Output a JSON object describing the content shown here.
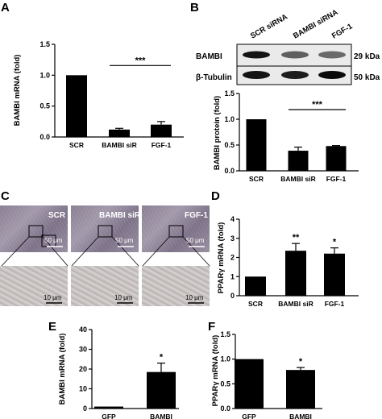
{
  "panel_labels": [
    "A",
    "B",
    "C",
    "D",
    "E",
    "F"
  ],
  "blot": {
    "lanes": [
      "SCR siRNA",
      "BAMBI siRNA",
      "FGF-1"
    ],
    "rows": [
      {
        "name": "BAMBI",
        "size": "29 kDa",
        "intensities": [
          0.95,
          0.55,
          0.5
        ]
      },
      {
        "name": "β-Tubulin",
        "size": "50 kDa",
        "intensities": [
          0.95,
          0.9,
          1.0
        ]
      }
    ]
  },
  "micrographs": {
    "labels": [
      "SCR",
      "BAMBI siR",
      "FGF-1"
    ],
    "scale_top": "50 μm",
    "scale_bottom": "10 μm"
  },
  "chart_data": [
    {
      "panel": "A",
      "type": "bar",
      "categories": [
        "SCR",
        "BAMBI siR",
        "FGF-1"
      ],
      "values": [
        1.0,
        0.12,
        0.2
      ],
      "errors": [
        0,
        0.02,
        0.05
      ],
      "ylabel": "BAMBI mRNA (fold)",
      "ylim": [
        0,
        1.5
      ],
      "yticks": [
        0.0,
        0.5,
        1.0,
        1.5
      ],
      "yticklabels": [
        "0.0",
        "0.5",
        "1.0",
        "1.5"
      ],
      "bracket": {
        "from": 1,
        "to": 2,
        "label": "***"
      },
      "bar_color": "#000000"
    },
    {
      "panel": "B",
      "type": "bar",
      "categories": [
        "SCR",
        "BAMBI siR",
        "FGF-1"
      ],
      "values": [
        1.0,
        0.39,
        0.48
      ],
      "errors": [
        0,
        0.07,
        0.01
      ],
      "ylabel": "BAMBI protein (fold)",
      "ylim": [
        0,
        1.5
      ],
      "yticks": [
        0.0,
        0.5,
        1.0,
        1.5
      ],
      "yticklabels": [
        "0.0",
        "0.5",
        "1.0",
        "1.5"
      ],
      "bracket": {
        "from": 1,
        "to": 2,
        "label": "***"
      },
      "bar_color": "#000000"
    },
    {
      "panel": "D",
      "type": "bar",
      "categories": [
        "SCR",
        "BAMBI siR",
        "FGF-1"
      ],
      "values": [
        1.0,
        2.35,
        2.2
      ],
      "errors": [
        0,
        0.38,
        0.3
      ],
      "stars": [
        "",
        "**",
        "*"
      ],
      "ylabel": "PPARγ mRNA (fold)",
      "ylim": [
        0,
        4
      ],
      "yticks": [
        0,
        1,
        2,
        3,
        4
      ],
      "yticklabels": [
        "0",
        "1",
        "2",
        "3",
        "4"
      ],
      "bar_color": "#000000"
    },
    {
      "panel": "E",
      "type": "bar",
      "categories": [
        "GFP",
        "BAMBI"
      ],
      "values": [
        1.0,
        18.5
      ],
      "errors": [
        0,
        4.5
      ],
      "stars": [
        "",
        "*"
      ],
      "ylabel": "BAMBI mRNA (fold)",
      "ylim": [
        0,
        40
      ],
      "yticks": [
        0,
        10,
        20,
        30,
        40
      ],
      "yticklabels": [
        "0",
        "10",
        "20",
        "30",
        "40"
      ],
      "bar_color": "#000000"
    },
    {
      "panel": "F",
      "type": "bar",
      "categories": [
        "GFP",
        "BAMBI"
      ],
      "values": [
        1.0,
        0.78
      ],
      "errors": [
        0,
        0.05
      ],
      "stars": [
        "",
        "*"
      ],
      "ylabel": "PPARγ mRNA (fold)",
      "ylim": [
        0,
        1.5
      ],
      "yticks": [
        0.0,
        0.5,
        1.0,
        1.5
      ],
      "yticklabels": [
        "0.0",
        "0.5",
        "1.0",
        "1.5"
      ],
      "bar_color": "#000000"
    }
  ]
}
